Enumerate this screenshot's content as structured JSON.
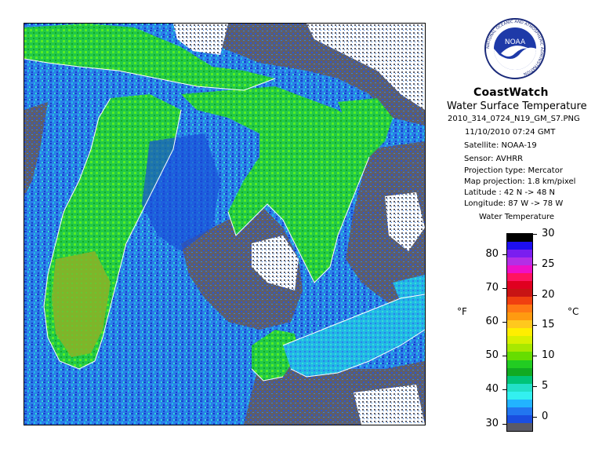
{
  "map": {
    "region": "Great Lakes",
    "palette": {
      "land_gray": "#5e5e6a",
      "cloud_white": "#ffffff",
      "water_dark_blue": "#1a3fd0",
      "water_blue": "#2b7fe8",
      "water_cyan": "#22b8e6",
      "water_aqua": "#33e0d4",
      "lake_green": "#22c84a",
      "lake_light_green": "#55ee22",
      "lake_olive": "#7fb52a",
      "shoreline": "#ffffff"
    }
  },
  "panel": {
    "logo_text": "NOAA",
    "logo_ring_text": "NATIONAL OCEANIC AND ATMOSPHERIC ADMINISTRATION",
    "title": "CoastWatch",
    "subtitle": "Water Surface Temperature",
    "filename": "2010_314_0724_N19_GM_S7.PNG",
    "datetime": "11/10/2010   07:24 GMT",
    "satellite": "Satellite: NOAA-19",
    "sensor": "Sensor: AVHRR",
    "projection_type": "Projection type:  Mercator",
    "map_projection": "Map projection: 1.8 km/pixel",
    "latitude": "Latitude : 42 N -> 48 N",
    "longitude": "Longitude: 87 W -> 78 W"
  },
  "colorbar": {
    "title": "Water Temperature",
    "unit_left": "°F",
    "unit_right": "°C",
    "fahrenheit_ticks": [
      "80",
      "70",
      "60",
      "50",
      "40",
      "30"
    ],
    "celsius_ticks": [
      "30",
      "25",
      "20",
      "15",
      "10",
      "5",
      "0"
    ],
    "colors": [
      "#000000",
      "#1e0ff0",
      "#7a1ef0",
      "#b42ee6",
      "#ee10c8",
      "#ff1460",
      "#e00020",
      "#c81414",
      "#f04010",
      "#ff7814",
      "#ff9a10",
      "#ffc81e",
      "#ffee00",
      "#d8f000",
      "#a8e800",
      "#66dd00",
      "#22cc22",
      "#11aa22",
      "#00c478",
      "#22e0c8",
      "#33f0f0",
      "#22b4ff",
      "#2276f0",
      "#1a4ee0",
      "#5a5a66"
    ]
  }
}
